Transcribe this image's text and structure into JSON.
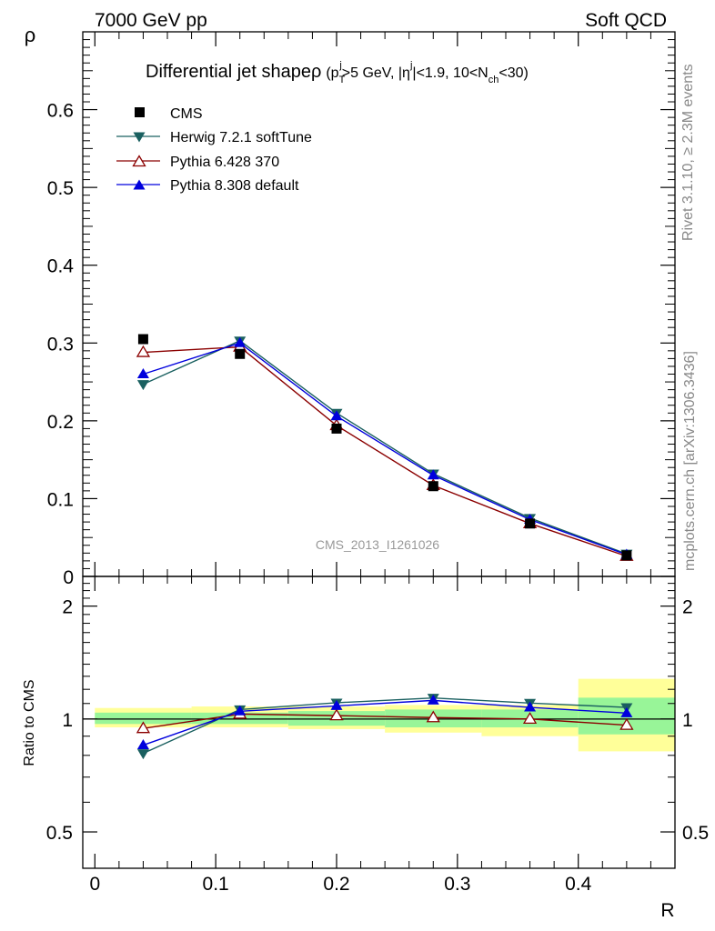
{
  "header": {
    "left": "7000 GeV pp",
    "right": "Soft QCD"
  },
  "side_labels": {
    "rivet": "Rivet 3.1.10, ≥ 2.3M events",
    "mcplots": "mcplots.cern.ch [arXiv:1306.3436]"
  },
  "colors": {
    "cms": "#000000",
    "herwig": "#1a6060",
    "pythia6": "#8b0000",
    "pythia8": "#0000dd",
    "band_inner": "#98f598",
    "band_outer": "#ffff99"
  },
  "chart_data": [
    {
      "type": "scatter",
      "panel": "main",
      "title": "Differential jet shapeρ (p_T^j>5 GeV, |η^j|<1.9, 10<N_ch<30)",
      "title_parts": {
        "main": "Differential jet shapeρ",
        "sub": "(p",
        "sub_T": "T",
        "sup_j1": "j",
        "sub_gev": ">5 GeV, |η",
        "sup_j2": "j",
        "sub_eta": "|<1.9, 10<N",
        "sub_ch": "ch",
        "sub_end": "<30)"
      },
      "ylabel": "ρ",
      "watermark": "CMS_2013_I1261026",
      "xlim": [
        -0.01,
        0.48
      ],
      "ylim": [
        0,
        0.7
      ],
      "y_ticks": [
        "0",
        "0.1",
        "0.2",
        "0.3",
        "0.4",
        "0.5",
        "0.6"
      ],
      "y_tick_values": [
        0,
        0.1,
        0.2,
        0.3,
        0.4,
        0.5,
        0.6
      ],
      "x": [
        0.04,
        0.12,
        0.2,
        0.28,
        0.36,
        0.44
      ],
      "legend_position": "top-left",
      "series": [
        {
          "name": "CMS",
          "key": "cms",
          "marker": "square",
          "values": [
            0.305,
            0.286,
            0.19,
            0.116,
            0.068,
            0.027
          ]
        },
        {
          "name": "Herwig 7.2.1 softTune",
          "key": "herwig",
          "marker": "triangle-down",
          "values": [
            0.247,
            0.303,
            0.21,
            0.132,
            0.075,
            0.029
          ]
        },
        {
          "name": "Pythia 6.428 370",
          "key": "pythia6",
          "marker": "triangle-up-open",
          "values": [
            0.288,
            0.295,
            0.194,
            0.117,
            0.068,
            0.026
          ]
        },
        {
          "name": "Pythia 8.308 default",
          "key": "pythia8",
          "marker": "triangle-up",
          "values": [
            0.26,
            0.3,
            0.206,
            0.13,
            0.073,
            0.028
          ]
        }
      ]
    },
    {
      "type": "line",
      "panel": "ratio",
      "ylabel": "Ratio to CMS",
      "xlabel": "R",
      "log_y": true,
      "ylim": [
        0.4,
        2.4
      ],
      "y_ticks": [
        "0.5",
        "1",
        "2"
      ],
      "y_tick_values": [
        0.5,
        1,
        2
      ],
      "x_ticks": [
        "0",
        "0.1",
        "0.2",
        "0.3",
        "0.4"
      ],
      "x_tick_values": [
        0,
        0.1,
        0.2,
        0.3,
        0.4
      ],
      "xlim": [
        -0.01,
        0.48
      ],
      "x": [
        0.04,
        0.12,
        0.2,
        0.28,
        0.36,
        0.44
      ],
      "bins": [
        [
          0,
          0.08
        ],
        [
          0.08,
          0.16
        ],
        [
          0.16,
          0.24
        ],
        [
          0.24,
          0.32
        ],
        [
          0.32,
          0.4
        ],
        [
          0.4,
          0.48
        ]
      ],
      "band_inner": [
        [
          0.97,
          1.04
        ],
        [
          0.97,
          1.04
        ],
        [
          0.96,
          1.05
        ],
        [
          0.95,
          1.06
        ],
        [
          0.95,
          1.06
        ],
        [
          0.91,
          1.14
        ]
      ],
      "band_outer": [
        [
          0.95,
          1.07
        ],
        [
          0.95,
          1.08
        ],
        [
          0.94,
          1.08
        ],
        [
          0.92,
          1.09
        ],
        [
          0.9,
          1.09
        ],
        [
          0.82,
          1.28
        ]
      ],
      "series": [
        {
          "name": "Herwig 7.2.1 softTune",
          "key": "herwig",
          "marker": "triangle-down",
          "values": [
            0.81,
            1.06,
            1.105,
            1.138,
            1.103,
            1.074
          ]
        },
        {
          "name": "Pythia 6.428 370",
          "key": "pythia6",
          "marker": "triangle-up-open",
          "values": [
            0.944,
            1.031,
            1.021,
            1.009,
            1.0,
            0.963
          ]
        },
        {
          "name": "Pythia 8.308 default",
          "key": "pythia8",
          "marker": "triangle-up",
          "values": [
            0.852,
            1.049,
            1.084,
            1.121,
            1.074,
            1.037
          ]
        }
      ]
    }
  ]
}
